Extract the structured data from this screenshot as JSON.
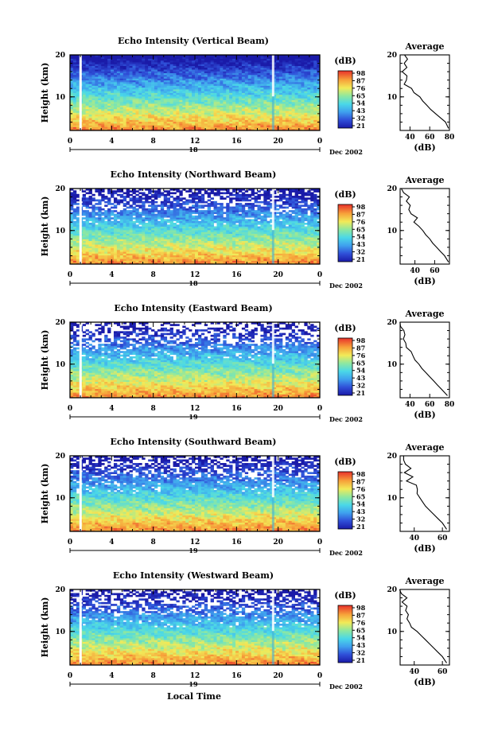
{
  "figure": {
    "xlabel": "Local Time",
    "date_label": "Dec 2002",
    "colorbar_title": "(dB)",
    "colorbar_ticks": [
      "98",
      "87",
      "76",
      "65",
      "54",
      "43",
      "32",
      "21"
    ],
    "average_title": "Average",
    "average_xlabel": "(dB)"
  },
  "chart_data": [
    {
      "type": "heatmap",
      "title": "Echo Intensity (Vertical Beam)",
      "ylabel": "Height (km)",
      "x_ticks": [
        "0",
        "4",
        "8",
        "12",
        "16",
        "20",
        "0"
      ],
      "y_ticks": [
        "20",
        "10"
      ],
      "xlim": [
        0,
        24
      ],
      "ylim": [
        2,
        20
      ],
      "day_label": "18",
      "colorscale": {
        "min": 21,
        "max": 98,
        "unit": "dB"
      },
      "profile": {
        "title": "Average",
        "xlabel": "(dB)",
        "x_ticks": [
          "40",
          "60",
          "80"
        ],
        "xlim": [
          30,
          80
        ],
        "y_ticks": [
          "20",
          "10"
        ],
        "ylim": [
          2,
          20
        ],
        "heights": [
          2.5,
          4,
          5,
          6,
          7,
          8,
          9,
          10,
          11,
          12,
          13,
          14,
          15,
          16,
          17,
          18,
          19,
          20
        ],
        "values": [
          79,
          76,
          71,
          66,
          61,
          57,
          53,
          50,
          44,
          40,
          36,
          35,
          37,
          34,
          38,
          35,
          36,
          34
        ]
      }
    },
    {
      "type": "heatmap",
      "title": "Echo Intensity (Northward Beam)",
      "ylabel": "Height (km)",
      "x_ticks": [
        "0",
        "4",
        "8",
        "12",
        "16",
        "20",
        "0"
      ],
      "y_ticks": [
        "20",
        "10"
      ],
      "xlim": [
        0,
        24
      ],
      "ylim": [
        2,
        20
      ],
      "day_label": "18",
      "colorscale": {
        "min": 21,
        "max": 98,
        "unit": "dB"
      },
      "profile": {
        "title": "Average",
        "xlabel": "(dB)",
        "x_ticks": [
          "40",
          "60"
        ],
        "xlim": [
          25,
          75
        ],
        "y_ticks": [
          "20",
          "10"
        ],
        "ylim": [
          2,
          20
        ],
        "heights": [
          2.5,
          4,
          5,
          6,
          7,
          8,
          9,
          10,
          11,
          12,
          13,
          14,
          15,
          16,
          17,
          18,
          19,
          20
        ],
        "values": [
          74,
          70,
          66,
          62,
          58,
          55,
          51,
          48,
          44,
          40,
          42,
          36,
          34,
          35,
          31,
          33,
          29,
          28
        ]
      }
    },
    {
      "type": "heatmap",
      "title": "Echo Intensity (Eastward Beam)",
      "ylabel": "Height (km)",
      "x_ticks": [
        "0",
        "4",
        "8",
        "12",
        "16",
        "20",
        "0"
      ],
      "y_ticks": [
        "20",
        "10"
      ],
      "xlim": [
        0,
        24
      ],
      "ylim": [
        2,
        20
      ],
      "day_label": "19",
      "colorscale": {
        "min": 21,
        "max": 98,
        "unit": "dB"
      },
      "profile": {
        "title": "Average",
        "xlabel": "(dB)",
        "x_ticks": [
          "40",
          "60",
          "80"
        ],
        "xlim": [
          30,
          80
        ],
        "y_ticks": [
          "20",
          "10"
        ],
        "ylim": [
          2,
          20
        ],
        "heights": [
          2.5,
          4,
          5,
          6,
          7,
          8,
          9,
          10,
          11,
          12,
          13,
          14,
          15,
          16,
          17,
          18,
          19,
          20
        ],
        "values": [
          78,
          72,
          68,
          64,
          60,
          56,
          52,
          49,
          45,
          44,
          41,
          38,
          36,
          35,
          33,
          32,
          31,
          30
        ]
      }
    },
    {
      "type": "heatmap",
      "title": "Echo Intensity (Southward Beam)",
      "ylabel": "Height (km)",
      "x_ticks": [
        "0",
        "4",
        "8",
        "12",
        "16",
        "20",
        "0"
      ],
      "y_ticks": [
        "20",
        "10"
      ],
      "xlim": [
        0,
        24
      ],
      "ylim": [
        2,
        20
      ],
      "day_label": "19",
      "colorscale": {
        "min": 21,
        "max": 98,
        "unit": "dB"
      },
      "profile": {
        "title": "Average",
        "xlabel": "(dB)",
        "x_ticks": [
          "40",
          "60"
        ],
        "xlim": [
          30,
          65
        ],
        "y_ticks": [
          "20",
          "10"
        ],
        "ylim": [
          2,
          20
        ],
        "heights": [
          2.5,
          4,
          5,
          6,
          7,
          8,
          9,
          10,
          11,
          12,
          13,
          14,
          15,
          16,
          17,
          18,
          19,
          20
        ],
        "values": [
          63,
          60,
          57,
          54,
          51,
          48,
          46,
          44,
          42,
          43,
          40,
          36,
          38,
          34,
          37,
          35,
          33,
          32
        ]
      }
    },
    {
      "type": "heatmap",
      "title": "Echo Intensity (Westward Beam)",
      "ylabel": "Height (km)",
      "x_ticks": [
        "0",
        "4",
        "8",
        "12",
        "16",
        "20",
        "0"
      ],
      "y_ticks": [
        "20",
        "10"
      ],
      "xlim": [
        0,
        24
      ],
      "ylim": [
        2,
        20
      ],
      "day_label": "19",
      "colorscale": {
        "min": 21,
        "max": 98,
        "unit": "dB"
      },
      "profile": {
        "title": "Average",
        "xlabel": "(dB)",
        "x_ticks": [
          "40",
          "60"
        ],
        "xlim": [
          30,
          65
        ],
        "y_ticks": [
          "20",
          "10"
        ],
        "ylim": [
          2,
          20
        ],
        "heights": [
          2.5,
          4,
          5,
          6,
          7,
          8,
          9,
          10,
          11,
          12,
          13,
          14,
          15,
          16,
          17,
          18,
          19,
          20
        ],
        "values": [
          63,
          60,
          57,
          54,
          51,
          48,
          45,
          42,
          38,
          36,
          33,
          35,
          32,
          33,
          31,
          34,
          32,
          31
        ]
      }
    }
  ]
}
